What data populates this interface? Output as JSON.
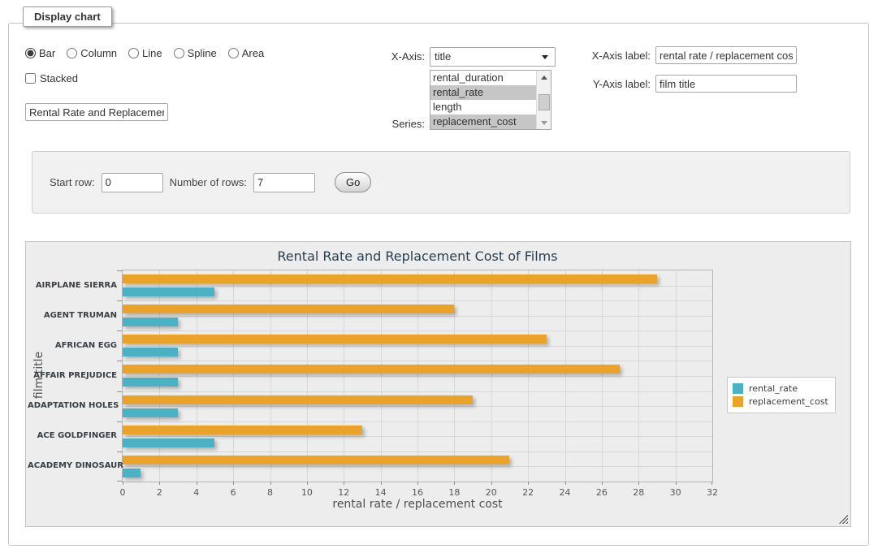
{
  "form": {
    "legend": "Display chart",
    "chart_types": [
      {
        "label": "Bar",
        "selected": true
      },
      {
        "label": "Column",
        "selected": false
      },
      {
        "label": "Line",
        "selected": false
      },
      {
        "label": "Spline",
        "selected": false
      },
      {
        "label": "Area",
        "selected": false
      }
    ],
    "stacked_label": "Stacked",
    "stacked_checked": false,
    "chart_title_value": "Rental Rate and Replacement Cost of Films",
    "x_axis_label_text": "X-Axis:",
    "x_axis_selected": "title",
    "series_label_text": "Series:",
    "series_options": [
      {
        "label": "rental_duration",
        "selected": false
      },
      {
        "label": "rental_rate",
        "selected": true
      },
      {
        "label": "length",
        "selected": false
      },
      {
        "label": "replacement_cost",
        "selected": true
      }
    ],
    "x_axis_label_field": {
      "label": "X-Axis label:",
      "value": "rental rate / replacement cost"
    },
    "y_axis_label_field": {
      "label": "Y-Axis label:",
      "value": "film title"
    }
  },
  "row_controls": {
    "start_row_label": "Start row:",
    "start_row_value": "0",
    "num_rows_label": "Number of rows:",
    "num_rows_value": "7",
    "go_label": "Go"
  },
  "chart_data": {
    "type": "bar",
    "orientation": "horizontal",
    "title": "Rental Rate and Replacement Cost of Films",
    "xlabel": "rental rate / replacement cost",
    "ylabel": "film title",
    "categories": [
      "AIRPLANE SIERRA",
      "AGENT TRUMAN",
      "AFRICAN EGG",
      "AFFAIR PREJUDICE",
      "ADAPTATION HOLES",
      "ACE GOLDFINGER",
      "ACADEMY DINOSAUR"
    ],
    "series": [
      {
        "name": "rental_rate",
        "color": "#4bb2c5",
        "values": [
          4.99,
          2.99,
          2.99,
          2.99,
          2.99,
          4.99,
          0.99
        ]
      },
      {
        "name": "replacement_cost",
        "color": "#eaa228",
        "values": [
          28.99,
          17.99,
          22.99,
          26.99,
          18.99,
          12.99,
          20.99
        ]
      }
    ],
    "xlim": [
      0,
      32
    ],
    "xtick_step": 2,
    "grid": true,
    "legend_position": "right"
  }
}
